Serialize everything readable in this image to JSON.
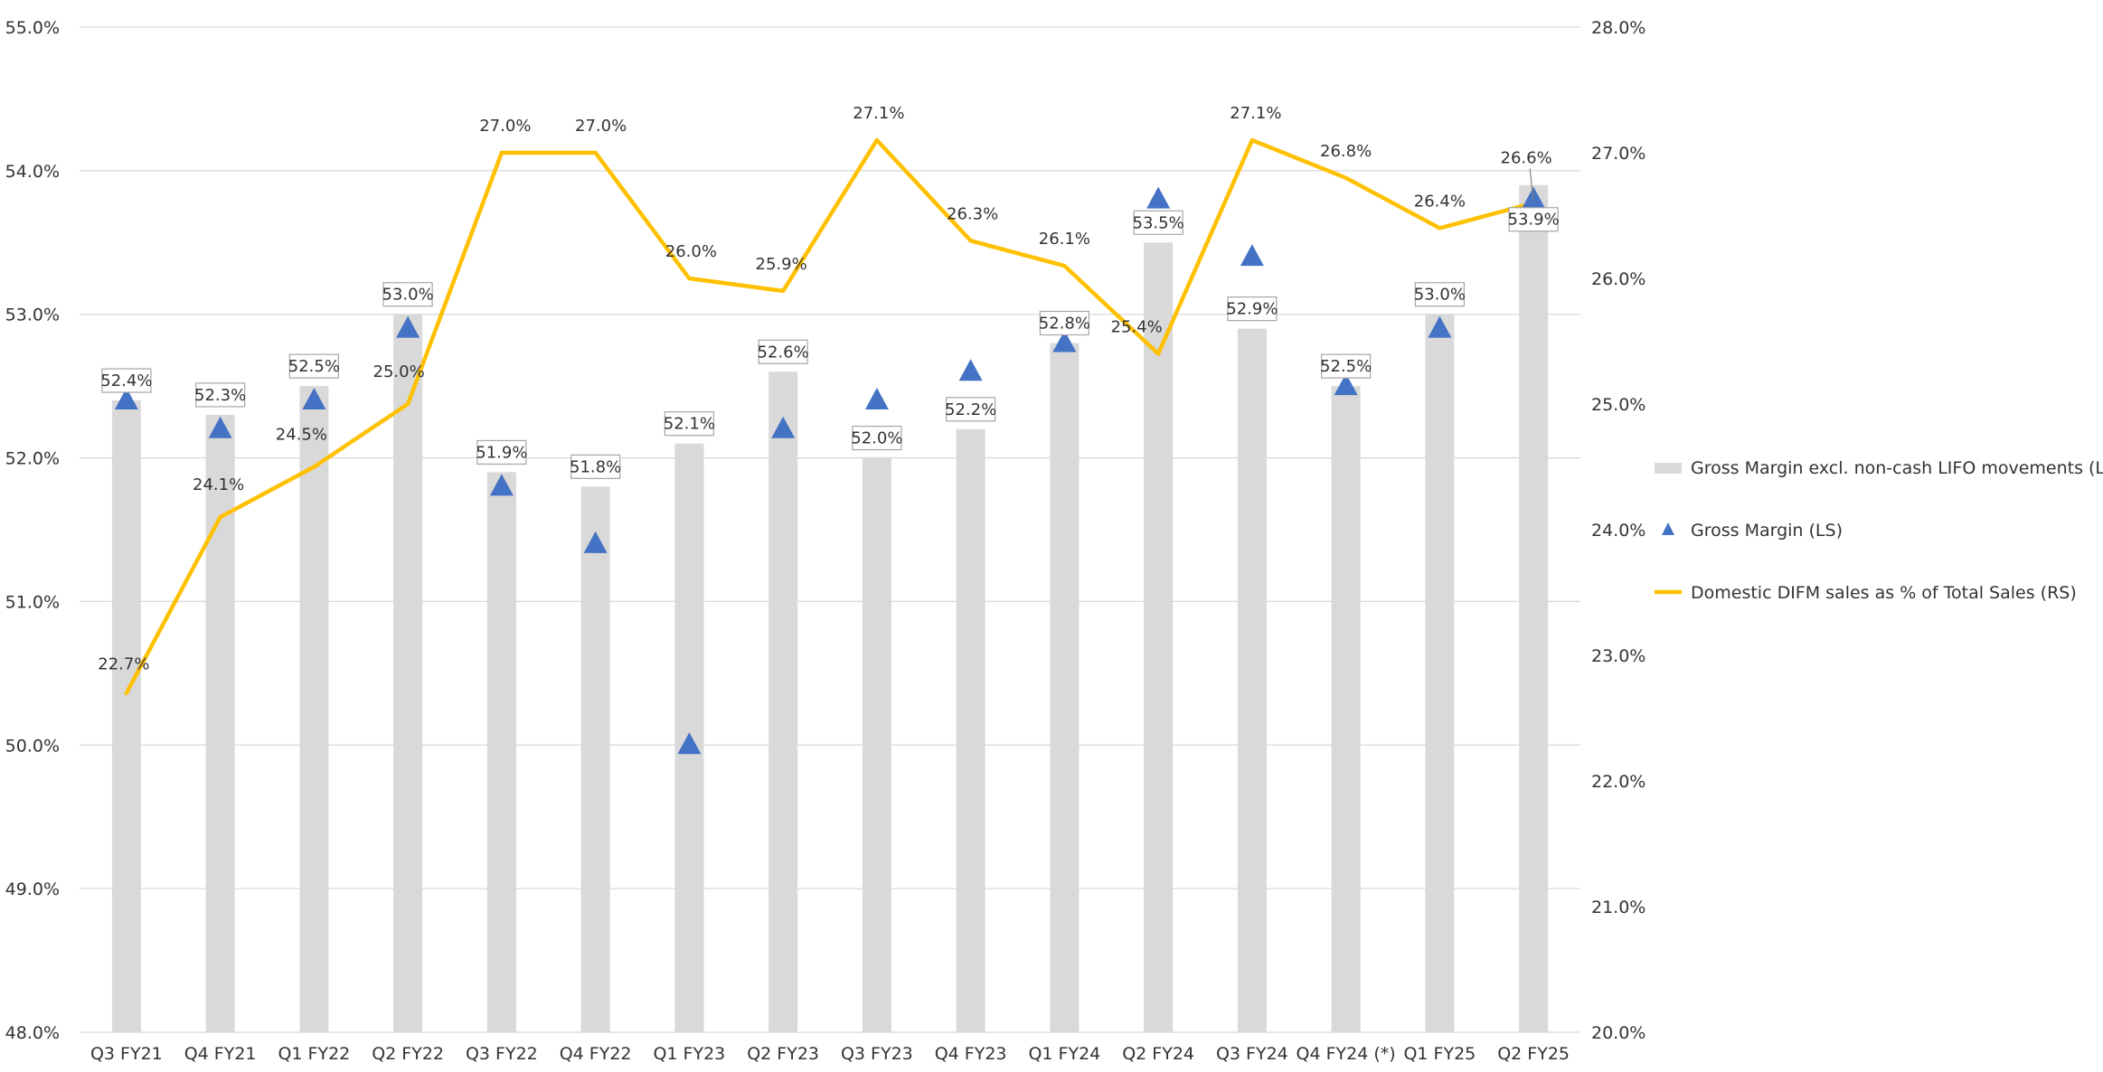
{
  "chart_data": {
    "type": "bar",
    "categories": [
      "Q3 FY21",
      "Q4 FY21",
      "Q1 FY22",
      "Q2 FY22",
      "Q3 FY22",
      "Q4 FY22",
      "Q1 FY23",
      "Q2 FY23",
      "Q3 FY23",
      "Q4 FY23",
      "Q1 FY24",
      "Q2 FY24",
      "Q3 FY24",
      "Q4 FY24 (*)",
      "Q1 FY25",
      "Q2 FY25"
    ],
    "left_axis": {
      "ylim": [
        48.0,
        55.0
      ],
      "ticks": [
        "48.0%",
        "49.0%",
        "50.0%",
        "51.0%",
        "52.0%",
        "53.0%",
        "54.0%",
        "55.0%"
      ]
    },
    "right_axis": {
      "ylim": [
        20.0,
        28.0
      ],
      "ticks": [
        "20.0%",
        "21.0%",
        "22.0%",
        "23.0%",
        "24.0%",
        "25.0%",
        "26.0%",
        "27.0%",
        "28.0%"
      ]
    },
    "grid": true,
    "legend_position": "right",
    "series": [
      {
        "name": "Gross Margin excl. non-cash LIFO movements (LS)",
        "type": "bar",
        "axis": "left",
        "color": "#d9d9d9",
        "values": [
          52.4,
          52.3,
          52.5,
          53.0,
          51.9,
          51.8,
          52.1,
          52.6,
          52.0,
          52.2,
          52.8,
          53.5,
          52.9,
          52.5,
          53.0,
          53.9
        ],
        "labels": [
          "52.4%",
          "52.3%",
          "52.5%",
          "53.0%",
          "51.9%",
          "51.8%",
          "52.1%",
          "52.6%",
          "52.0%",
          "52.2%",
          "52.8%",
          "53.5%",
          "52.9%",
          "52.5%",
          "53.0%",
          "53.9%"
        ]
      },
      {
        "name": "Gross Margin (LS)",
        "type": "scatter",
        "axis": "left",
        "color": "#4472c4",
        "marker": "triangle",
        "values": [
          52.4,
          52.2,
          52.4,
          52.9,
          51.8,
          51.4,
          50.0,
          52.2,
          52.4,
          52.6,
          52.8,
          53.8,
          53.4,
          52.5,
          52.9,
          53.8
        ]
      },
      {
        "name": "Domestic DIFM sales as % of Total Sales (RS)",
        "type": "line",
        "axis": "right",
        "color": "#ffc000",
        "values": [
          22.7,
          24.1,
          24.5,
          25.0,
          27.0,
          27.0,
          26.0,
          25.9,
          27.1,
          26.3,
          26.1,
          25.4,
          27.1,
          26.8,
          26.4,
          26.6
        ],
        "labels": [
          "22.7%",
          "24.1%",
          "24.5%",
          "25.0%",
          "27.0%",
          "27.0%",
          "26.0%",
          "25.9%",
          "27.1%",
          "26.3%",
          "26.1%",
          "25.4%",
          "27.1%",
          "26.8%",
          "26.4%",
          "26.6%"
        ]
      }
    ]
  }
}
